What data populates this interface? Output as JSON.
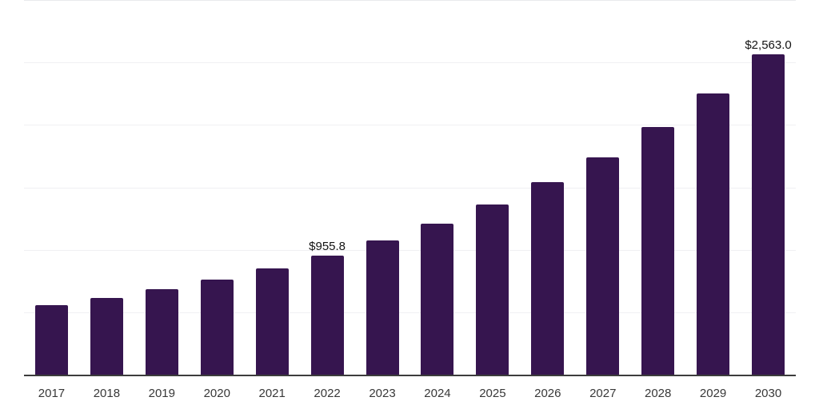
{
  "chart_data": {
    "type": "bar",
    "title": "",
    "xlabel": "",
    "ylabel": "",
    "categories": [
      "2017",
      "2018",
      "2019",
      "2020",
      "2021",
      "2022",
      "2023",
      "2024",
      "2025",
      "2026",
      "2027",
      "2028",
      "2029",
      "2030"
    ],
    "values": [
      555,
      612,
      682,
      760,
      853,
      955.8,
      1073,
      1206,
      1360,
      1540,
      1743,
      1980,
      2253,
      2563.0
    ],
    "value_labels": {
      "2022": "$955.8",
      "2030": "$2,563.0"
    },
    "ylim": [
      0,
      3000
    ],
    "gridline_values": [
      500,
      1000,
      1500,
      2000,
      2500,
      3000
    ],
    "grid": "on",
    "legend": "none",
    "bar_color": "#36154f"
  },
  "style": {
    "background": "#ffffff",
    "gridline_color": "#f0f0f3",
    "top_gridline_color": "#e9eaec",
    "axis_line_color": "#3c3c3c",
    "tick_label_color": "#383838",
    "data_label_color": "#141414"
  }
}
